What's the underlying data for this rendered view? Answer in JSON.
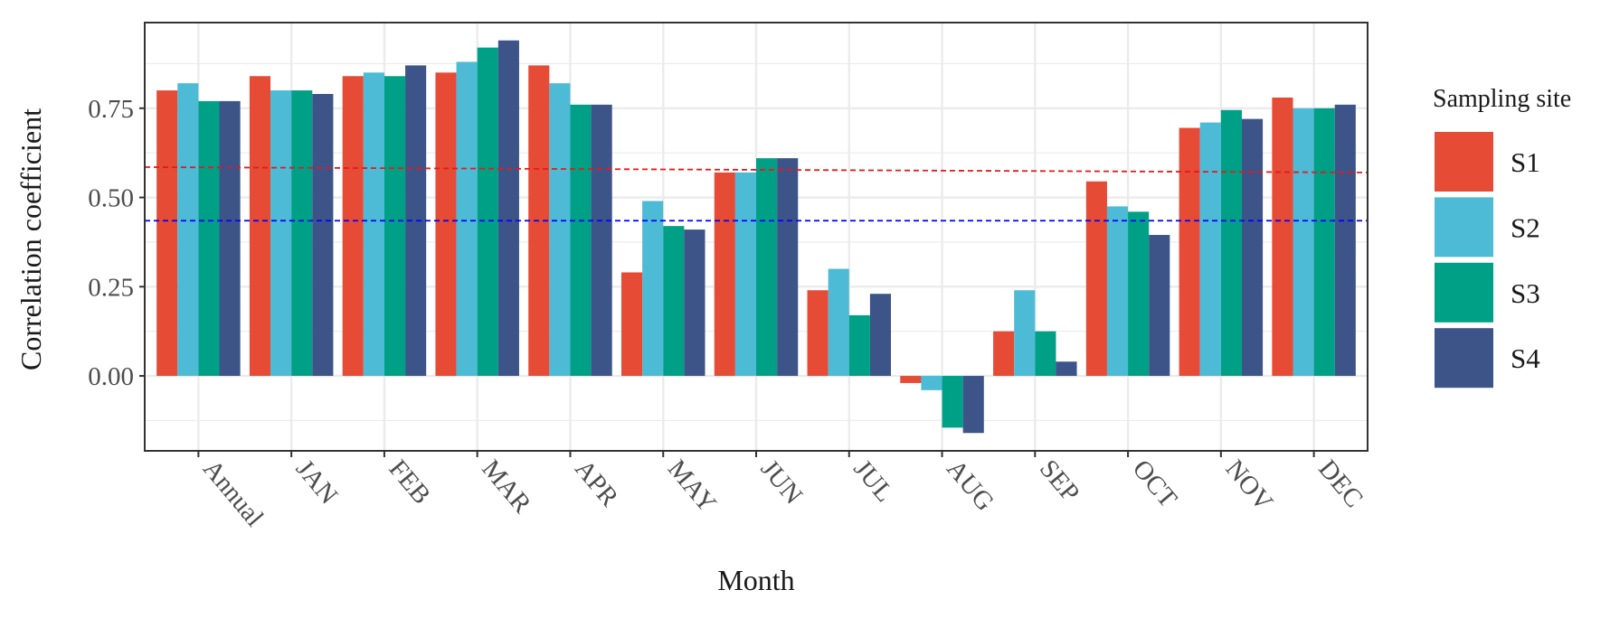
{
  "chart_data": {
    "type": "bar",
    "x_label": "Month",
    "y_label": "Correlation coefficient",
    "legend_title": "Sampling site",
    "categories": [
      "Annual",
      "JAN",
      "FEB",
      "MAR",
      "APR",
      "MAY",
      "JUN",
      "JUL",
      "AUG",
      "SEP",
      "OCT",
      "NOV",
      "DEC"
    ],
    "series": [
      {
        "name": "S1",
        "color": "#e64b35",
        "values": [
          0.8,
          0.84,
          0.84,
          0.85,
          0.87,
          0.29,
          0.57,
          0.24,
          -0.02,
          0.125,
          0.545,
          0.695,
          0.78
        ]
      },
      {
        "name": "S2",
        "color": "#4dbbd5",
        "values": [
          0.82,
          0.8,
          0.85,
          0.88,
          0.82,
          0.49,
          0.57,
          0.3,
          -0.04,
          0.24,
          0.475,
          0.71,
          0.75
        ]
      },
      {
        "name": "S3",
        "color": "#00a087",
        "values": [
          0.77,
          0.8,
          0.84,
          0.92,
          0.76,
          0.42,
          0.61,
          0.17,
          -0.145,
          0.125,
          0.46,
          0.745,
          0.75
        ]
      },
      {
        "name": "S4",
        "color": "#3c5488",
        "values": [
          0.77,
          0.79,
          0.87,
          0.94,
          0.76,
          0.41,
          0.61,
          0.23,
          -0.16,
          0.04,
          0.395,
          0.72,
          0.76
        ]
      }
    ],
    "reference_lines": [
      {
        "color": "#e41a1c",
        "values": [
          0.585,
          0.57
        ]
      },
      {
        "color": "#0000ff",
        "values": [
          0.435,
          0.435
        ]
      }
    ],
    "ylim": [
      -0.21,
      0.99
    ],
    "yticks": [
      {
        "value": 0,
        "label": "0.00"
      },
      {
        "value": 0.25,
        "label": "0.25"
      },
      {
        "value": 0.5,
        "label": "0.50"
      },
      {
        "value": 0.75,
        "label": "0.75"
      }
    ],
    "grid": true
  }
}
